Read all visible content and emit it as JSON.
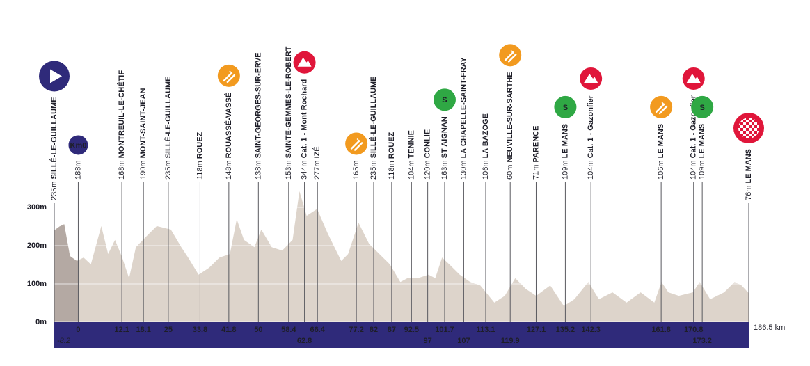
{
  "chart_data": {
    "type": "area",
    "x": [
      -8.2,
      -5.2,
      -3.9,
      -2.3,
      -0.4,
      1.5,
      3.5,
      6.4,
      8.3,
      10.2,
      12.2,
      14.1,
      16.0,
      18.9,
      21.8,
      25.7,
      28.6,
      30.5,
      33.4,
      36.3,
      39.2,
      42.1,
      44.0,
      46.0,
      48.9,
      50.8,
      53.7,
      56.6,
      59.5,
      61.4,
      63.4,
      66.3,
      69.2,
      71.1,
      73.0,
      74.9,
      77.8,
      80.7,
      83.6,
      86.5,
      89.4,
      91.4,
      94.3,
      97.2,
      99.1,
      101.0,
      103.0,
      105.9,
      108.8,
      111.6,
      115.5,
      118.4,
      121.3,
      124.2,
      127.1,
      131.0,
      134.8,
      137.7,
      141.6,
      144.5,
      148.3,
      152.2,
      156.1,
      159.9,
      161.9,
      163.8,
      166.7,
      170.6,
      172.5,
      175.4,
      179.3,
      182.2,
      184.1,
      186.5
    ],
    "values": [
      240,
      250,
      256,
      173,
      160,
      169,
      151,
      251,
      178,
      215,
      169,
      115,
      196,
      224,
      251,
      242,
      196,
      169,
      124,
      142,
      169,
      178,
      269,
      215,
      196,
      242,
      196,
      187,
      215,
      342,
      278,
      296,
      233,
      196,
      160,
      178,
      260,
      205,
      178,
      151,
      105,
      115,
      115,
      124,
      115,
      169,
      151,
      124,
      105,
      96,
      51,
      69,
      115,
      87,
      69,
      96,
      42,
      60,
      105,
      60,
      78,
      51,
      78,
      51,
      105,
      78,
      69,
      78,
      105,
      60,
      78,
      105,
      96,
      76
    ],
    "color": "#ddd4cb",
    "neutral_color": "#b4a9a3",
    "xlim": [
      -8.2,
      186.5
    ],
    "xticks": [
      {
        "value": 186.5,
        "label": "186.5 km"
      }
    ],
    "ylim": [
      0,
      350
    ],
    "yticks": [
      {
        "value": 0,
        "label": "0m"
      },
      {
        "value": 100,
        "label": "100m"
      },
      {
        "value": 200,
        "label": "200m"
      },
      {
        "value": 300,
        "label": "300m"
      }
    ],
    "grid": true,
    "icon_labels": {
      "km0": "Km0",
      "sprint": "S"
    },
    "waypoints": [
      {
        "km": -8.2,
        "alt": "235m",
        "name": "SILLÉ-LE-GUILLAUME",
        "icon": "start"
      },
      {
        "km": 0,
        "alt": "188m",
        "icon": "km0"
      },
      {
        "km": 12.1,
        "alt": "168m",
        "name": "MONTREUIL-LE-CHÉTIF"
      },
      {
        "km": 18.1,
        "alt": "190m",
        "name": "MONT-SAINT-JEAN"
      },
      {
        "km": 25,
        "alt": "235m",
        "name": "SILLÉ-LE-GUILLAUME"
      },
      {
        "km": 33.8,
        "alt": "118m",
        "name": "ROUEZ"
      },
      {
        "km": 41.8,
        "alt": "148m",
        "name": "ROUASSÉ-VASSÉ",
        "icon": "feed"
      },
      {
        "km": 50,
        "alt": "138m",
        "name": "SAINT-GEORGES-SUR-ERVE"
      },
      {
        "km": 58.4,
        "alt": "153m",
        "name": "SAINTE-GEMMES-LE-ROBERT"
      },
      {
        "km": 62.8,
        "alt": "344m",
        "name": "Cat. 1 - Mont Rochard",
        "icon": "climb"
      },
      {
        "km": 66.4,
        "alt": "277m",
        "name": "IZÉ"
      },
      {
        "km": 77.2,
        "alt": "165m",
        "icon": "feed"
      },
      {
        "km": 82,
        "alt": "235m",
        "name": "SILLÉ-LE-GUILLAUME"
      },
      {
        "km": 87,
        "alt": "118m",
        "name": "ROUEZ"
      },
      {
        "km": 92.5,
        "alt": "104m",
        "name": "TENNIE"
      },
      {
        "km": 97,
        "alt": "120m",
        "name": "CONLIE"
      },
      {
        "km": 101.7,
        "alt": "163m",
        "name": "ST AIGNAN",
        "icon": "sprint"
      },
      {
        "km": 107,
        "alt": "130m",
        "name": "LA CHAPELLE-SAINT-FRAY"
      },
      {
        "km": 113.1,
        "alt": "106m",
        "name": "LA BAZOGE"
      },
      {
        "km": 119.9,
        "alt": "60m",
        "name": "NEUVILLE-SUR-SARTHE",
        "icon": "feed"
      },
      {
        "km": 127.1,
        "alt": "71m",
        "name": "PARENCE"
      },
      {
        "km": 135.2,
        "alt": "109m",
        "name": "LE MANS",
        "icon": "sprint"
      },
      {
        "km": 142.3,
        "alt": "104m",
        "name": "Cat. 1 - Gazonfier",
        "icon": "climb"
      },
      {
        "km": 161.8,
        "alt": "106m",
        "name": "LE MANS",
        "icon": "feed"
      },
      {
        "km": 170.8,
        "alt": "104m",
        "name": "Cat. 1 - Gazonfier",
        "icon": "climb"
      },
      {
        "km": 173.2,
        "alt": "109m",
        "name": "LE MANS",
        "icon": "sprint"
      },
      {
        "alt": "76m",
        "name": "LE MANS",
        "icon": "finish"
      }
    ]
  }
}
